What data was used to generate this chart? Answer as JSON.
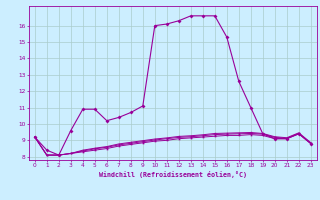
{
  "x": [
    0,
    1,
    2,
    3,
    4,
    5,
    6,
    7,
    8,
    9,
    10,
    11,
    12,
    13,
    14,
    15,
    16,
    17,
    18,
    19,
    20,
    21,
    22,
    23
  ],
  "line1": [
    9.2,
    8.4,
    8.1,
    9.6,
    10.9,
    10.9,
    10.2,
    10.4,
    10.7,
    11.1,
    16.0,
    16.1,
    16.3,
    16.6,
    16.6,
    16.6,
    15.3,
    12.6,
    11.0,
    9.4,
    9.1,
    9.1,
    9.4,
    8.8
  ],
  "line2": [
    9.2,
    8.1,
    8.1,
    8.2,
    8.3,
    8.4,
    8.5,
    8.65,
    8.75,
    8.85,
    8.95,
    9.0,
    9.1,
    9.15,
    9.2,
    9.25,
    9.3,
    9.3,
    9.35,
    9.3,
    9.1,
    9.1,
    9.4,
    8.8
  ],
  "line3": [
    9.2,
    8.1,
    8.1,
    8.2,
    8.35,
    8.48,
    8.58,
    8.72,
    8.82,
    8.92,
    9.02,
    9.1,
    9.18,
    9.22,
    9.28,
    9.35,
    9.38,
    9.4,
    9.42,
    9.38,
    9.18,
    9.12,
    9.42,
    8.82
  ],
  "line4": [
    9.2,
    8.1,
    8.1,
    8.2,
    8.4,
    8.52,
    8.62,
    8.78,
    8.88,
    8.98,
    9.08,
    9.15,
    9.24,
    9.28,
    9.34,
    9.42,
    9.44,
    9.46,
    9.48,
    9.42,
    9.22,
    9.16,
    9.46,
    8.86
  ],
  "line_color": "#990099",
  "bg_color": "#cceeff",
  "grid_color": "#aacccc",
  "xlabel": "Windchill (Refroidissement éolien,°C)",
  "ylim_min": 7.8,
  "ylim_max": 17.2,
  "xlim_min": -0.5,
  "xlim_max": 23.5,
  "yticks": [
    8,
    9,
    10,
    11,
    12,
    13,
    14,
    15,
    16
  ],
  "xticks": [
    0,
    1,
    2,
    3,
    4,
    5,
    6,
    7,
    8,
    9,
    10,
    11,
    12,
    13,
    14,
    15,
    16,
    17,
    18,
    19,
    20,
    21,
    22,
    23
  ]
}
